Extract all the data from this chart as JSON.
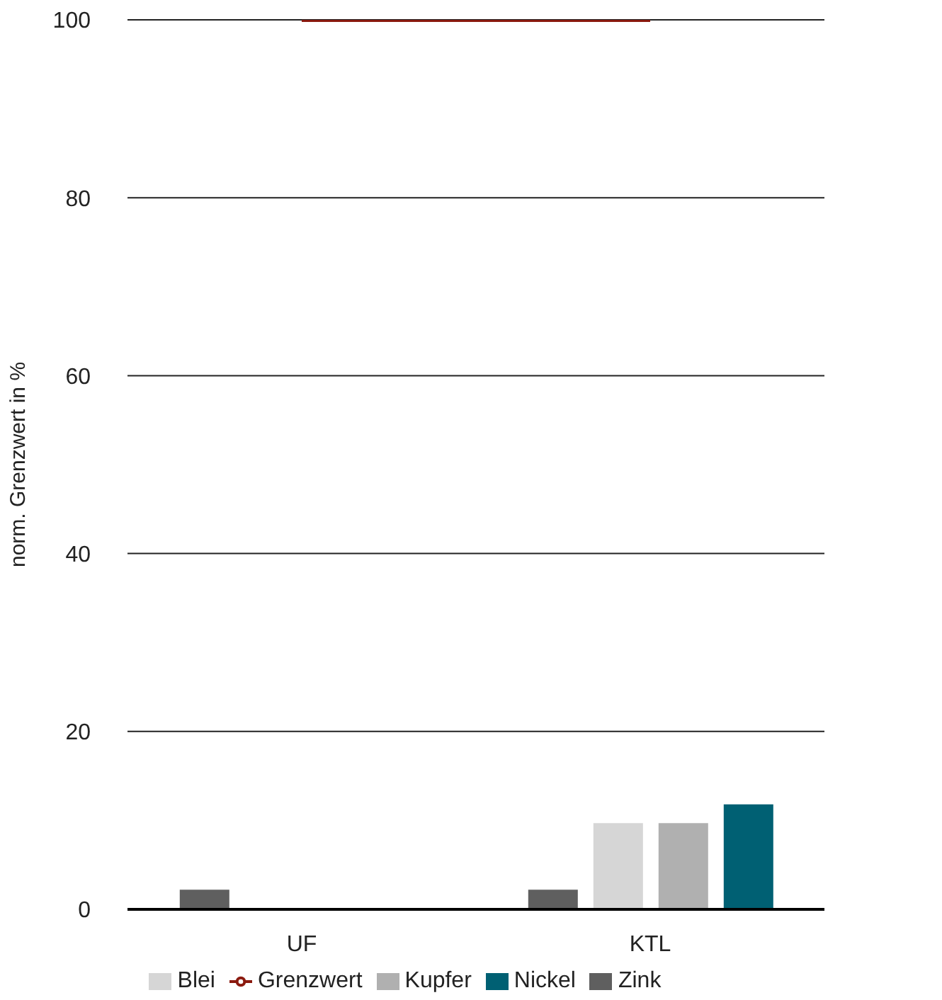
{
  "chart_data": {
    "type": "bar",
    "ylabel": "norm. Grenzwert in %",
    "categories": [
      "UF",
      "KTL"
    ],
    "series": [
      {
        "name": "Zink",
        "color": "#5f5f5f",
        "values": [
          2.2,
          2.2
        ]
      },
      {
        "name": "Blei",
        "color": "#d6d6d6",
        "values": [
          0,
          9.7
        ]
      },
      {
        "name": "Kupfer",
        "color": "#b0b0b0",
        "values": [
          0,
          9.7
        ]
      },
      {
        "name": "Nickel",
        "color": "#006073",
        "values": [
          0,
          11.8
        ]
      },
      {
        "name": "Grenzwert",
        "type": "line",
        "color": "#8b1a0f",
        "values": [
          100,
          100
        ]
      }
    ],
    "ylim": [
      0,
      100
    ],
    "yticks": [
      0,
      20,
      40,
      60,
      80,
      100
    ],
    "grid": "y",
    "legend": "bottom",
    "marker": "none"
  }
}
